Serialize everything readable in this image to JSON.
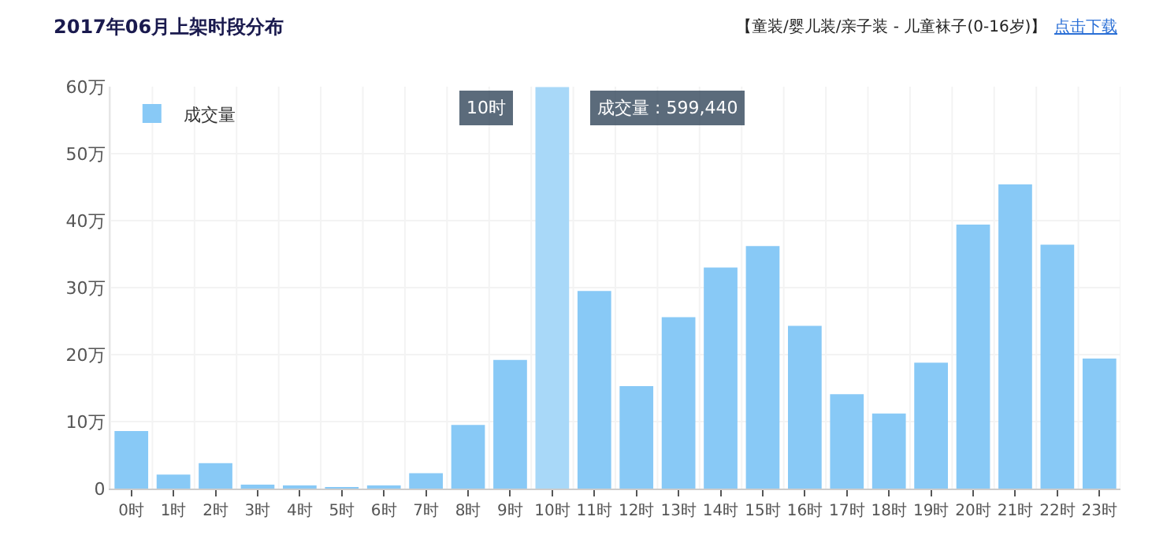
{
  "chart_data": {
    "type": "bar",
    "title": "2017年06月上架时段分布",
    "subtitle": "【童装/婴儿装/亲子装 - 儿童袜子(0-16岁)】",
    "annotations": [
      "点击下载",
      {
        "text": "10时",
        "x": "10时",
        "y": 59.944
      },
      {
        "text": "成交量 : 599,440",
        "x": "10时",
        "y": 59.944
      }
    ],
    "categories": [
      "0时",
      "1时",
      "2时",
      "3时",
      "4时",
      "5时",
      "6时",
      "7时",
      "8时",
      "9时",
      "10时",
      "11时",
      "12时",
      "13时",
      "14时",
      "15时",
      "16时",
      "17时",
      "18时",
      "19时",
      "20时",
      "21时",
      "22时",
      "23时"
    ],
    "series": [
      {
        "name": "成交量",
        "color": "#88c9f6",
        "colors": [
          null,
          null,
          null,
          null,
          null,
          null,
          null,
          null,
          null,
          null,
          "#a8d8f8",
          null,
          null,
          null,
          null,
          null,
          null,
          null,
          null,
          null,
          null,
          null,
          null,
          null
        ],
        "values": [
          8.6,
          2.1,
          3.8,
          0.6,
          0.4,
          0.2,
          0.4,
          2.3,
          9.5,
          19.2,
          59.944,
          29.5,
          15.3,
          25.6,
          33.0,
          36.2,
          24.3,
          14.1,
          11.2,
          18.8,
          39.4,
          45.4,
          36.4,
          19.4
        ]
      }
    ],
    "ylim": [
      0,
      60
    ],
    "yticks": [
      0,
      {
        "value": 10,
        "label": "10万"
      },
      {
        "value": 20,
        "label": "20万"
      },
      {
        "value": 30,
        "label": "30万"
      },
      {
        "value": 40,
        "label": "40万"
      },
      {
        "value": 50,
        "label": "50万"
      },
      {
        "value": 60,
        "label": "60万"
      }
    ],
    "grid": true,
    "legend": "top left"
  }
}
